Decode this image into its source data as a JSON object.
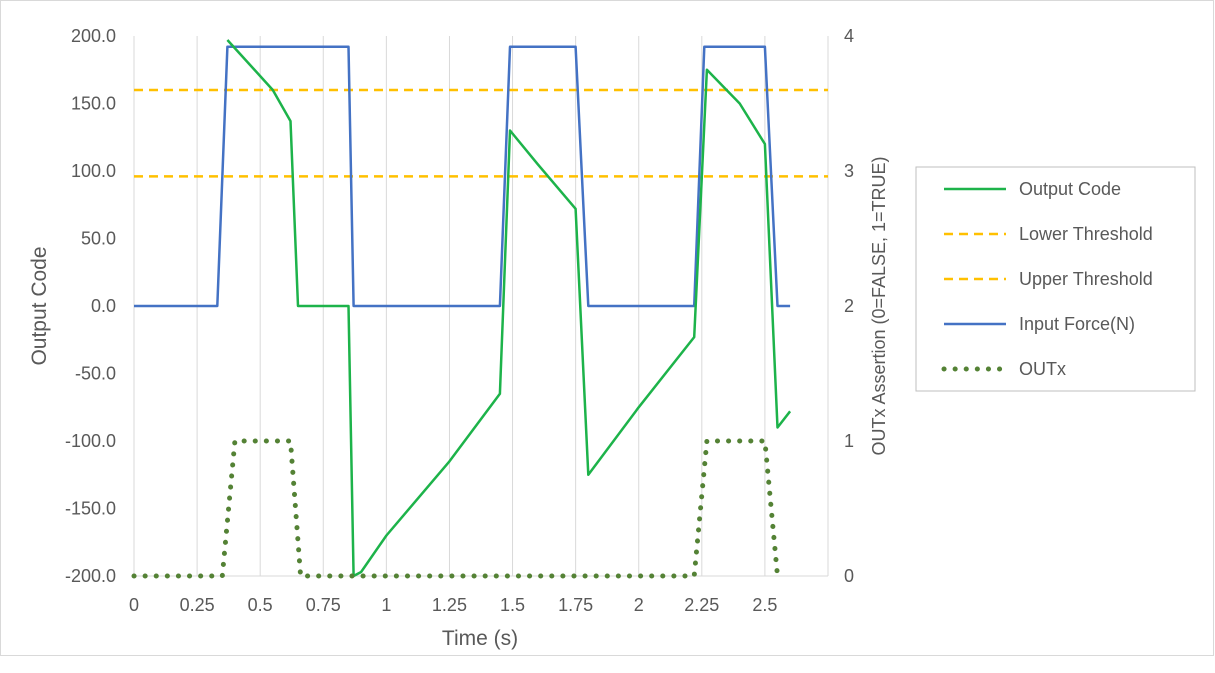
{
  "chart_data": {
    "type": "line",
    "title": "",
    "xlabel": "Time (s)",
    "ylabel": "Output Code",
    "y2label": "OUTx Assertion (0=FALSE, 1=TRUE)",
    "xlim": [
      0,
      2.75
    ],
    "ylim": [
      -200,
      200
    ],
    "y2lim": [
      0,
      4
    ],
    "x_ticks": [
      0,
      0.25,
      0.5,
      0.75,
      1,
      1.25,
      1.5,
      1.75,
      2,
      2.25,
      2.5
    ],
    "x_tick_labels": [
      "0",
      "0.25",
      "0.5",
      "0.75",
      "1",
      "1.25",
      "1.5",
      "1.75",
      "2",
      "2.25",
      "2.5"
    ],
    "y_ticks": [
      200,
      150,
      100,
      50,
      0,
      -50,
      -100,
      -150,
      -200
    ],
    "y_tick_labels": [
      "200.0",
      "150.0",
      "100.0",
      "50.0",
      "0.0",
      "-50.0",
      "-100.0",
      "-150.0",
      "-200.0"
    ],
    "y2_ticks": [
      4,
      3,
      2,
      1,
      0
    ],
    "y2_tick_labels": [
      "4",
      "3",
      "2",
      "1",
      "0"
    ],
    "grid": "vertical",
    "legend_position": "right",
    "series": [
      {
        "name": "Output Code",
        "axis": "left",
        "color": "#1db34a",
        "style": "solid",
        "points": [
          [
            0.37,
            197
          ],
          [
            0.55,
            160
          ],
          [
            0.62,
            137
          ],
          [
            0.65,
            0
          ],
          [
            0.85,
            0
          ],
          [
            0.87,
            -200
          ],
          [
            0.9,
            -197
          ],
          [
            1.0,
            -170
          ],
          [
            1.25,
            -115
          ],
          [
            1.45,
            -65
          ],
          [
            1.49,
            130
          ],
          [
            1.6,
            105
          ],
          [
            1.75,
            72
          ],
          [
            1.8,
            -125
          ],
          [
            2.0,
            -75
          ],
          [
            2.22,
            -23
          ],
          [
            2.27,
            175
          ],
          [
            2.4,
            150
          ],
          [
            2.5,
            120
          ],
          [
            2.55,
            -90
          ],
          [
            2.6,
            -78
          ]
        ]
      },
      {
        "name": "Lower Threshold",
        "axis": "left",
        "color": "#ffc000",
        "style": "dashed",
        "points": [
          [
            0,
            96
          ],
          [
            2.75,
            96
          ]
        ]
      },
      {
        "name": "Upper Threshold",
        "axis": "left",
        "color": "#ffc000",
        "style": "dashed",
        "points": [
          [
            0,
            160
          ],
          [
            2.75,
            160
          ]
        ]
      },
      {
        "name": "Input Force(N)",
        "axis": "right",
        "color": "#4472c4",
        "style": "solid",
        "points": [
          [
            0,
            2
          ],
          [
            0.33,
            2
          ],
          [
            0.37,
            3.92
          ],
          [
            0.85,
            3.92
          ],
          [
            0.87,
            2
          ],
          [
            1.45,
            2
          ],
          [
            1.49,
            3.92
          ],
          [
            1.75,
            3.92
          ],
          [
            1.8,
            2
          ],
          [
            2.22,
            2
          ],
          [
            2.26,
            3.92
          ],
          [
            2.5,
            3.92
          ],
          [
            2.55,
            2
          ],
          [
            2.6,
            2
          ]
        ]
      },
      {
        "name": "OUTx",
        "axis": "right",
        "color": "#548235",
        "style": "dotted",
        "points": [
          [
            0,
            0
          ],
          [
            0.35,
            0
          ],
          [
            0.4,
            1
          ],
          [
            0.62,
            1
          ],
          [
            0.66,
            0
          ],
          [
            2.22,
            0
          ],
          [
            2.27,
            1
          ],
          [
            2.5,
            1
          ],
          [
            2.55,
            0
          ]
        ]
      }
    ]
  }
}
